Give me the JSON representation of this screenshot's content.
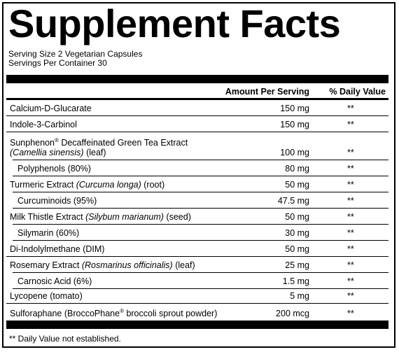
{
  "title": "Supplement Facts",
  "serving_size": "Serving Size 2 Vegetarian Capsules",
  "servings_per_container": "Servings Per Container 30",
  "header": {
    "amount_label": "Amount Per Serving",
    "daily_value_label": "% Daily Value"
  },
  "rows": [
    {
      "name": "Calcium-D-Glucarate",
      "amount": "150 mg",
      "daily": "**"
    },
    {
      "name": "Indole-3-Carbinol",
      "amount": "150 mg",
      "daily": "**"
    },
    {
      "name_line1_pre": "Sunphenon",
      "name_line1_sup": "®",
      "name_line1_post": " Decaffeinated Green Tea Extract",
      "name_line2_italic": "(Camellia sinensis)",
      "name_line2_post": " (leaf)",
      "amount": "100 mg",
      "daily": "**"
    },
    {
      "name": "Polyphenols (80%)",
      "amount": "80 mg",
      "daily": "**",
      "sub": true
    },
    {
      "name_pre": "Turmeric Extract ",
      "name_italic": "(Curcuma longa)",
      "name_post": " (root)",
      "amount": "50 mg",
      "daily": "**"
    },
    {
      "name": "Curcuminoids (95%)",
      "amount": "47.5 mg",
      "daily": "**",
      "sub": true
    },
    {
      "name_pre": "Milk Thistle Extract ",
      "name_italic": "(Silybum marianum)",
      "name_post": " (seed)",
      "amount": "50 mg",
      "daily": "**"
    },
    {
      "name": "Silymarin (60%)",
      "amount": "30 mg",
      "daily": "**",
      "sub": true
    },
    {
      "name": "Di-Indolylmethane (DIM)",
      "amount": "50 mg",
      "daily": "**"
    },
    {
      "name_pre": "Rosemary Extract ",
      "name_italic": "(Rosmarinus officinalis)",
      "name_post": " (leaf)",
      "amount": "25 mg",
      "daily": "**"
    },
    {
      "name": "Carnosic Acid (6%)",
      "amount": "1.5 mg",
      "daily": "**",
      "sub": true
    },
    {
      "name": "Lycopene (tomato)",
      "amount": "5 mg",
      "daily": "**"
    },
    {
      "name_pre": "Sulforaphane (BroccoPhane",
      "name_sup": "®",
      "name_post": " broccoli sprout powder)",
      "amount": "200 mcg",
      "daily": "**"
    }
  ],
  "footnote": "** Daily Value not established."
}
